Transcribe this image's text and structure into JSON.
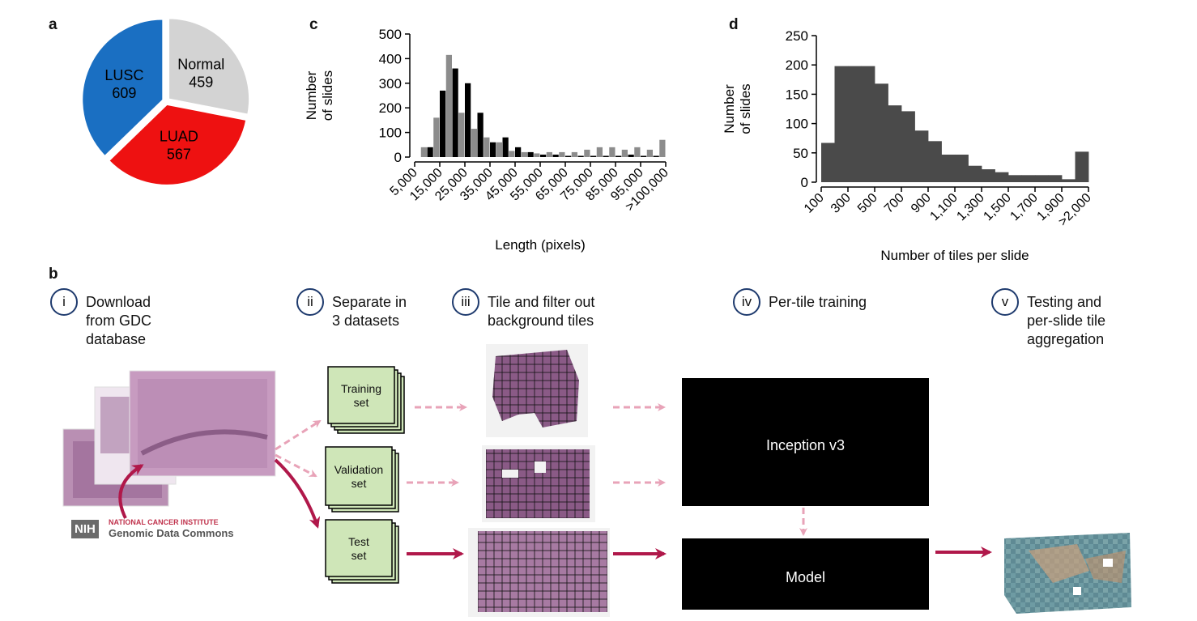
{
  "panel_labels": {
    "a": "a",
    "b": "b",
    "c": "c",
    "d": "d"
  },
  "chart_data": [
    {
      "type": "pie",
      "panel": "a",
      "slices": [
        {
          "label": "Normal",
          "value": 459,
          "color": "#d3d3d3"
        },
        {
          "label": "LUAD",
          "value": 567,
          "color": "#ee1111"
        },
        {
          "label": "LUSC",
          "value": 609,
          "color": "#1a6fc2"
        }
      ]
    },
    {
      "type": "bar",
      "panel": "c",
      "xlabel": "Length (pixels)",
      "ylabel": "Number\nof slides",
      "ylim": [
        0,
        500
      ],
      "yticks": [
        0,
        100,
        200,
        300,
        400,
        500
      ],
      "tick_labels": [
        "5,000",
        "15,000",
        "25,000",
        "35,000",
        "45,000",
        "55,000",
        "65,000",
        "75,000",
        "85,000",
        "95,000",
        ">100,000"
      ],
      "bins": 20,
      "series": [
        {
          "color": "#000000",
          "values": [
            0,
            40,
            270,
            360,
            300,
            180,
            60,
            80,
            40,
            20,
            10,
            10,
            5,
            5,
            5,
            5,
            5,
            10,
            5,
            5
          ]
        },
        {
          "color": "#8c8c8c",
          "values": [
            40,
            160,
            415,
            180,
            115,
            80,
            60,
            25,
            20,
            15,
            20,
            20,
            20,
            30,
            40,
            40,
            30,
            40,
            30,
            70
          ]
        }
      ]
    },
    {
      "type": "bar",
      "panel": "d",
      "xlabel": "Number of tiles per slide",
      "ylabel": "Number\nof slides",
      "ylim": [
        0,
        250
      ],
      "yticks": [
        0,
        50,
        100,
        150,
        200,
        250
      ],
      "tick_labels": [
        "100",
        "300",
        "500",
        "700",
        "900",
        "1,100",
        "1,300",
        "1,500",
        "1,700",
        "1,900",
        ">2,000"
      ],
      "color": "#4a4a4a",
      "values": [
        67,
        198,
        198,
        198,
        168,
        131,
        121,
        88,
        70,
        47,
        47,
        28,
        22,
        17,
        12,
        12,
        12,
        12,
        5,
        52
      ]
    }
  ],
  "pipeline": {
    "steps": [
      {
        "num": "i",
        "text": "Download\nfrom GDC\ndatabase"
      },
      {
        "num": "ii",
        "text": "Separate in\n3 datasets"
      },
      {
        "num": "iii",
        "text": "Tile and filter out\nbackground tiles"
      },
      {
        "num": "iv",
        "text": "Per-tile training"
      },
      {
        "num": "v",
        "text": "Testing and\nper-slide tile\naggregation"
      }
    ],
    "sets": [
      "Training\nset",
      "Validation\nset",
      "Test\nset"
    ],
    "model_boxes": {
      "inception": "Inception v3",
      "model": "Model"
    },
    "source": {
      "nih_tag": "NIH",
      "nci": "NATIONAL CANCER INSTITUTE",
      "gdc": "Genomic Data Commons"
    },
    "colors": {
      "pink": "#e8a3b8",
      "crimson": "#b0184a",
      "set_fill": "#cfe6b8",
      "tissue": "#8a5a86"
    }
  }
}
